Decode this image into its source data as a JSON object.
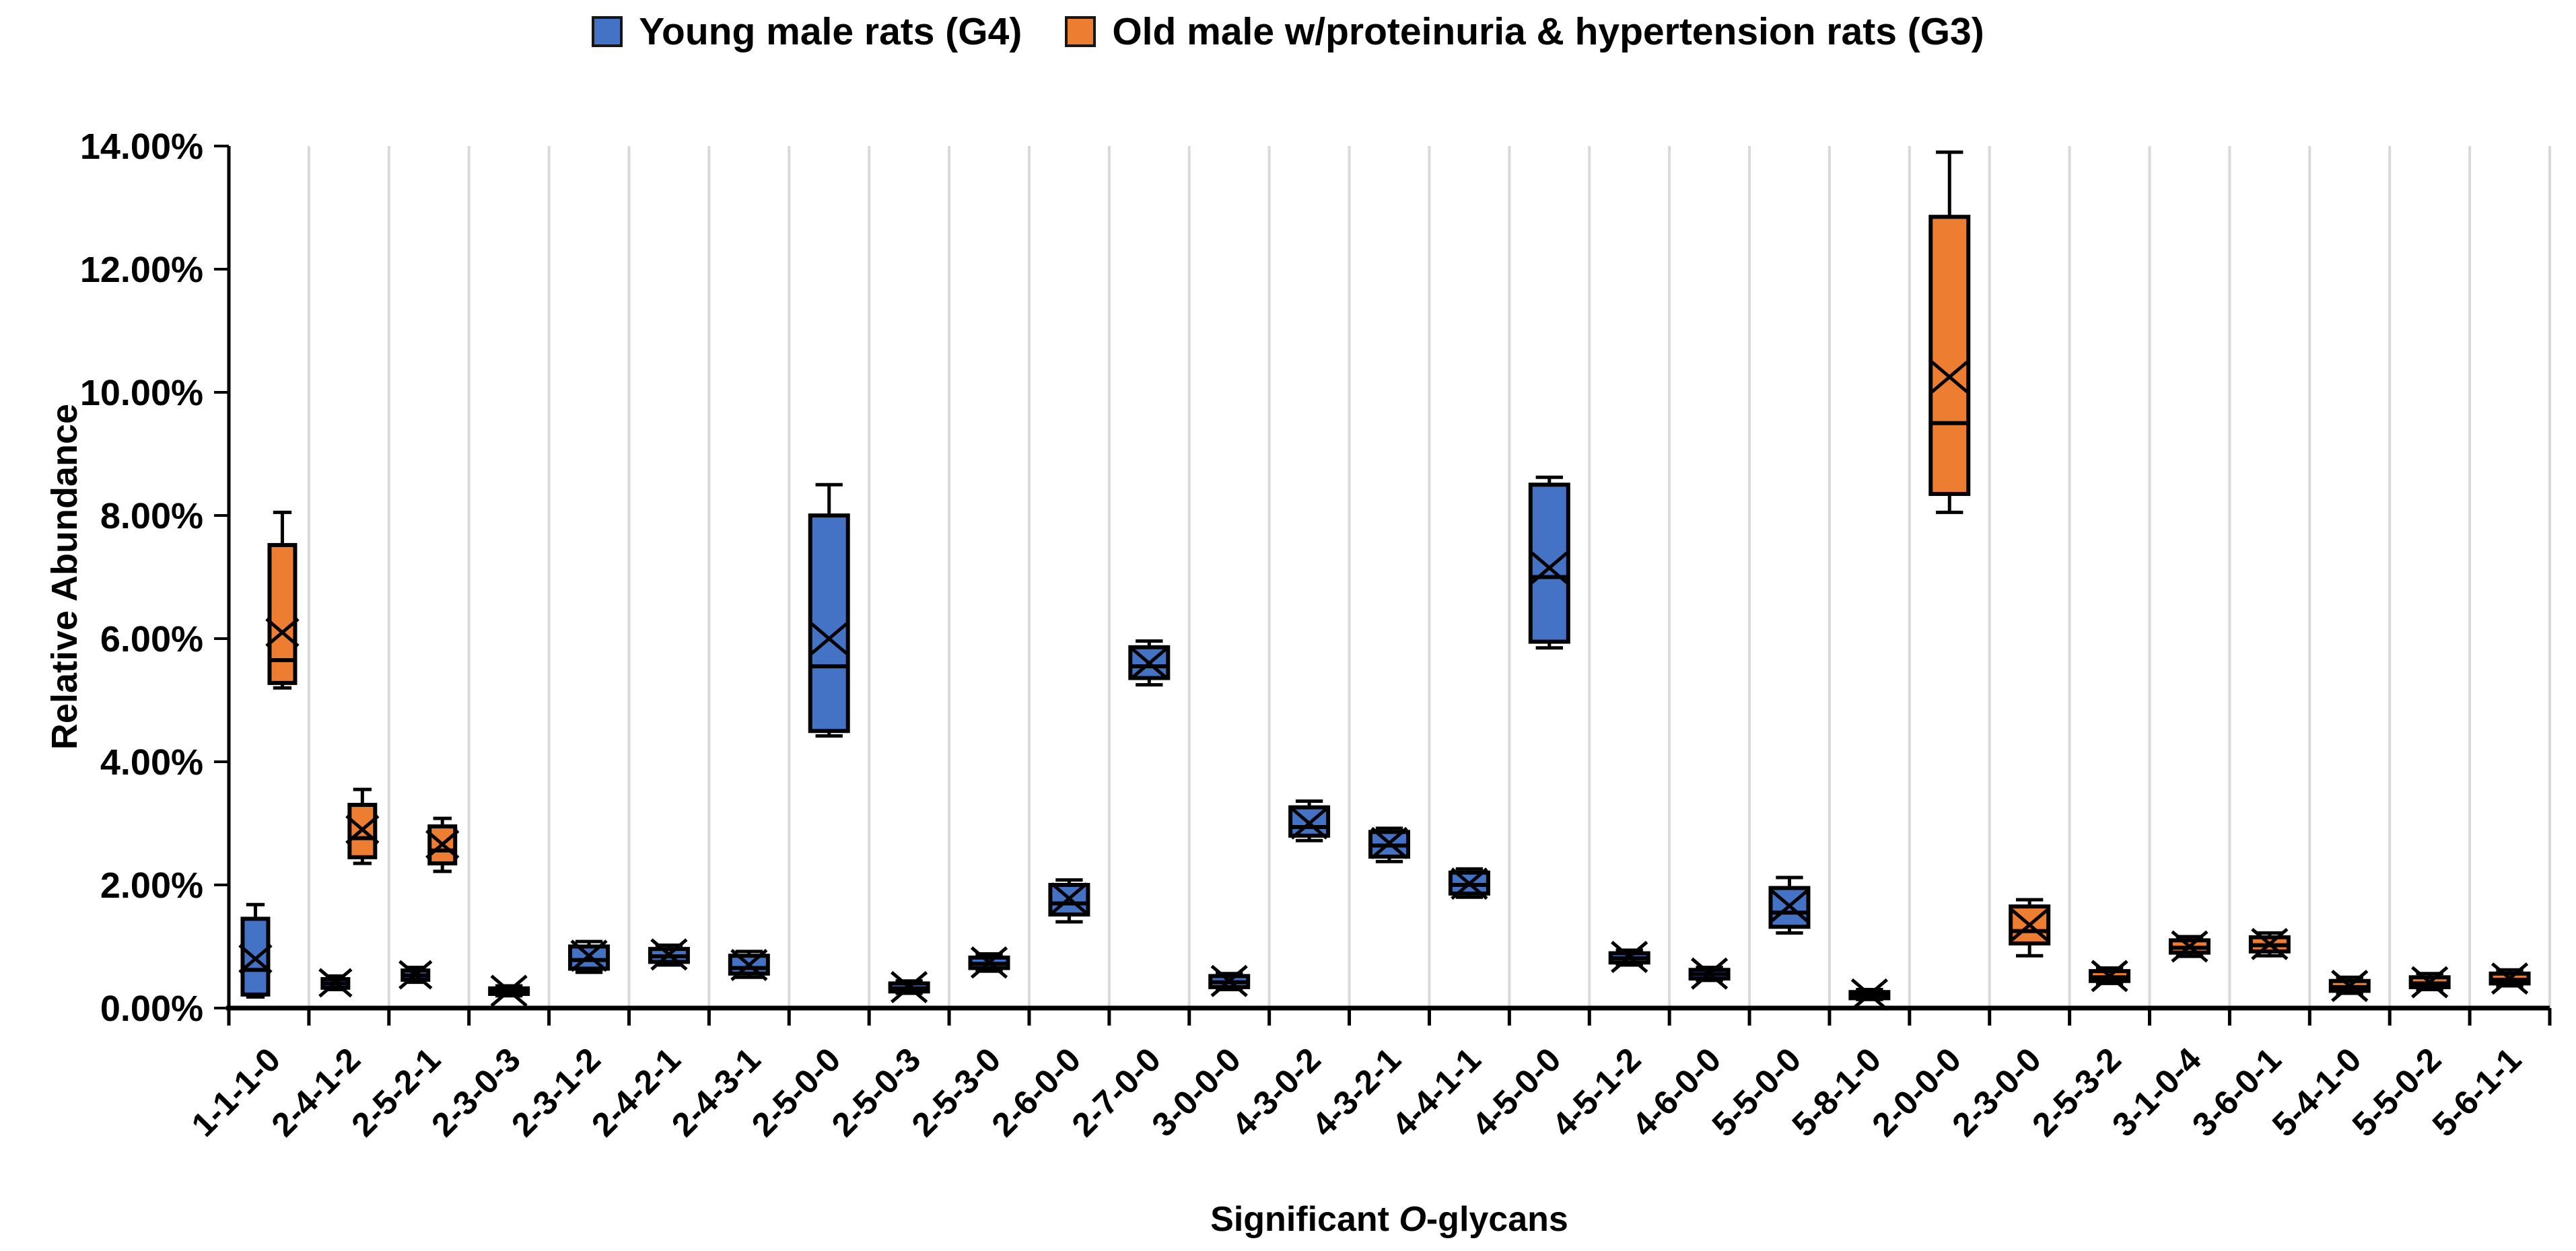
{
  "legend": {
    "items": [
      {
        "label": "Young male rats (G4)",
        "color": "#4472C4"
      },
      {
        "label": "Old male w/proteinuria & hypertension rats (G3)",
        "color": "#ED7D31"
      }
    ]
  },
  "axes": {
    "y_title": "Relative Abundance",
    "x_title_prefix": "Significant ",
    "x_title_italic": "O",
    "x_title_suffix": "-glycans",
    "y_tick_labels": [
      "14.00%",
      "12.00%",
      "10.00%",
      "8.00%",
      "6.00%",
      "4.00%",
      "2.00%",
      "0.00%"
    ]
  },
  "chart_data": {
    "type": "box",
    "title": "",
    "xlabel": "Significant O-glycans",
    "ylabel": "Relative Abundance",
    "ylim": [
      0,
      14
    ],
    "y_tick_step_pct": 2,
    "grid": "vertical-category-separators",
    "legend_position": "top-center",
    "series_names": [
      "Young male rats (G4)",
      "Old male w/proteinuria & hypertension rats (G3)"
    ],
    "units": "percent relative abundance",
    "colors": {
      "g4": "#4472C4",
      "g3": "#ED7D31",
      "box_border": "#000000",
      "gridline": "#D9D9D9",
      "axis": "#000000",
      "text": "#000000"
    },
    "categories": [
      {
        "label": "1-1-1-0",
        "g4": {
          "min": 0.18,
          "q1": 0.22,
          "med": 0.62,
          "mean": 0.8,
          "q3": 1.45,
          "max": 1.68
        },
        "g3": {
          "min": 5.2,
          "q1": 5.28,
          "med": 5.65,
          "mean": 6.1,
          "q3": 7.52,
          "max": 8.05
        }
      },
      {
        "label": "2-4-1-2",
        "g4": {
          "min": 0.3,
          "q1": 0.33,
          "med": 0.4,
          "mean": 0.41,
          "q3": 0.47,
          "max": 0.52
        },
        "g3": {
          "min": 2.35,
          "q1": 2.45,
          "med": 2.76,
          "mean": 2.9,
          "q3": 3.3,
          "max": 3.55
        }
      },
      {
        "label": "2-5-2-1",
        "g4": {
          "min": 0.42,
          "q1": 0.46,
          "med": 0.53,
          "mean": 0.54,
          "q3": 0.61,
          "max": 0.66
        },
        "g3": {
          "min": 2.22,
          "q1": 2.35,
          "med": 2.56,
          "mean": 2.66,
          "q3": 2.95,
          "max": 3.08
        }
      },
      {
        "label": "2-3-0-3",
        "g4": {
          "min": 0.2,
          "q1": 0.23,
          "med": 0.27,
          "mean": 0.28,
          "q3": 0.32,
          "max": 0.36
        }
      },
      {
        "label": "2-3-1-2",
        "g4": {
          "min": 0.58,
          "q1": 0.64,
          "med": 0.78,
          "mean": 0.85,
          "q3": 1.0,
          "max": 1.08
        }
      },
      {
        "label": "2-4-2-1",
        "g4": {
          "min": 0.7,
          "q1": 0.75,
          "med": 0.84,
          "mean": 0.87,
          "q3": 0.96,
          "max": 1.02
        }
      },
      {
        "label": "2-4-3-1",
        "g4": {
          "min": 0.5,
          "q1": 0.56,
          "med": 0.65,
          "mean": 0.7,
          "q3": 0.85,
          "max": 0.92
        }
      },
      {
        "label": "2-5-0-0",
        "g4": {
          "min": 4.42,
          "q1": 4.5,
          "med": 5.55,
          "mean": 6.0,
          "q3": 8.0,
          "max": 8.5
        }
      },
      {
        "label": "2-5-0-3",
        "g4": {
          "min": 0.24,
          "q1": 0.27,
          "med": 0.32,
          "mean": 0.34,
          "q3": 0.4,
          "max": 0.44
        }
      },
      {
        "label": "2-5-3-0",
        "g4": {
          "min": 0.6,
          "q1": 0.65,
          "med": 0.72,
          "mean": 0.74,
          "q3": 0.82,
          "max": 0.88
        }
      },
      {
        "label": "2-6-0-0",
        "g4": {
          "min": 1.4,
          "q1": 1.52,
          "med": 1.7,
          "mean": 1.78,
          "q3": 2.0,
          "max": 2.08
        }
      },
      {
        "label": "2-7-0-0",
        "g4": {
          "min": 5.25,
          "q1": 5.36,
          "med": 5.55,
          "mean": 5.6,
          "q3": 5.86,
          "max": 5.96
        }
      },
      {
        "label": "3-0-0-0",
        "g4": {
          "min": 0.3,
          "q1": 0.34,
          "med": 0.42,
          "mean": 0.44,
          "q3": 0.52,
          "max": 0.56
        }
      },
      {
        "label": "4-3-0-2",
        "g4": {
          "min": 2.72,
          "q1": 2.8,
          "med": 2.94,
          "mean": 3.0,
          "q3": 3.26,
          "max": 3.36
        }
      },
      {
        "label": "4-3-2-1",
        "g4": {
          "min": 2.38,
          "q1": 2.46,
          "med": 2.64,
          "mean": 2.68,
          "q3": 2.86,
          "max": 2.92
        }
      },
      {
        "label": "4-4-1-1",
        "g4": {
          "min": 1.8,
          "q1": 1.86,
          "med": 2.0,
          "mean": 2.02,
          "q3": 2.2,
          "max": 2.26
        }
      },
      {
        "label": "4-5-0-0",
        "g4": {
          "min": 5.85,
          "q1": 5.95,
          "med": 7.0,
          "mean": 7.15,
          "q3": 8.5,
          "max": 8.62
        }
      },
      {
        "label": "4-5-1-2",
        "g4": {
          "min": 0.7,
          "q1": 0.74,
          "med": 0.81,
          "mean": 0.83,
          "q3": 0.89,
          "max": 0.94
        }
      },
      {
        "label": "4-6-0-0",
        "g4": {
          "min": 0.45,
          "q1": 0.48,
          "med": 0.55,
          "mean": 0.56,
          "q3": 0.62,
          "max": 0.66
        }
      },
      {
        "label": "5-5-0-0",
        "g4": {
          "min": 1.22,
          "q1": 1.32,
          "med": 1.55,
          "mean": 1.66,
          "q3": 1.95,
          "max": 2.12
        }
      },
      {
        "label": "5-8-1-0",
        "g4": {
          "min": 0.14,
          "q1": 0.16,
          "med": 0.2,
          "mean": 0.22,
          "q3": 0.26,
          "max": 0.3
        }
      },
      {
        "label": "2-0-0-0",
        "g3": {
          "min": 8.05,
          "q1": 8.35,
          "med": 9.5,
          "mean": 10.25,
          "q3": 12.85,
          "max": 13.9
        }
      },
      {
        "label": "2-3-0-0",
        "g3": {
          "min": 0.85,
          "q1": 1.05,
          "med": 1.25,
          "mean": 1.35,
          "q3": 1.65,
          "max": 1.76
        }
      },
      {
        "label": "2-5-3-2",
        "g3": {
          "min": 0.4,
          "q1": 0.44,
          "med": 0.5,
          "mean": 0.52,
          "q3": 0.6,
          "max": 0.65
        }
      },
      {
        "label": "3-1-0-4",
        "g3": {
          "min": 0.84,
          "q1": 0.9,
          "med": 0.98,
          "mean": 1.0,
          "q3": 1.1,
          "max": 1.16
        }
      },
      {
        "label": "3-6-0-1",
        "g3": {
          "min": 0.85,
          "q1": 0.92,
          "med": 1.02,
          "mean": 1.04,
          "q3": 1.15,
          "max": 1.22
        }
      },
      {
        "label": "5-4-1-0",
        "g3": {
          "min": 0.24,
          "q1": 0.28,
          "med": 0.34,
          "mean": 0.36,
          "q3": 0.44,
          "max": 0.5
        }
      },
      {
        "label": "5-5-0-2",
        "g3": {
          "min": 0.3,
          "q1": 0.34,
          "med": 0.4,
          "mean": 0.42,
          "q3": 0.5,
          "max": 0.56
        }
      },
      {
        "label": "5-6-1-1",
        "g3": {
          "min": 0.36,
          "q1": 0.4,
          "med": 0.46,
          "mean": 0.48,
          "q3": 0.56,
          "max": 0.62
        }
      }
    ]
  }
}
